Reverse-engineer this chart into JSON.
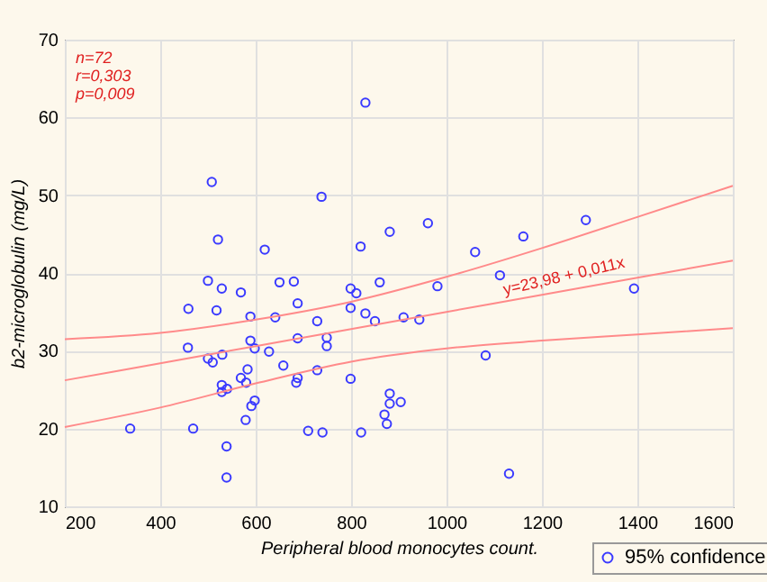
{
  "chart_data": {
    "type": "scatter",
    "xlabel": "Peripheral blood monocytes count.",
    "ylabel": "b2-microglobulin (mg/L)",
    "xlim": [
      200,
      1600
    ],
    "xticks": [
      200,
      400,
      600,
      800,
      1000,
      1200,
      1400,
      1600
    ],
    "ylim": [
      10,
      70
    ],
    "yticks": [
      10,
      20,
      30,
      40,
      50,
      60,
      70
    ],
    "grid": true,
    "legend": "bottom right",
    "annotations": [
      "n=72",
      "r=0,303",
      "p=0,009",
      {
        "text": "y=23,98 + 0,011x",
        "x": 1250,
        "y": 38.5
      }
    ],
    "series": [
      {
        "name": "95% confidence",
        "type": "scatter",
        "marker": "circle",
        "color": "#3a3aff",
        "x": [
          830,
          508,
          738,
          521,
          619,
          820,
          881,
          961,
          1060,
          1161,
          1292,
          1112,
          981,
          943,
          1393,
          1082,
          1131,
          500,
          529,
          569,
          650,
          680,
          799,
          811,
          860,
          459,
          518,
          589,
          641,
          688,
          799,
          830,
          850,
          729,
          910,
          458,
          500,
          510,
          530,
          589,
          598,
          628,
          688,
          749,
          749,
          658,
          729,
          583,
          569,
          580,
          688,
          685,
          799,
          529,
          529,
          540,
          598,
          591,
          579,
          881,
          881,
          904,
          870,
          875,
          337,
          469,
          710,
          740,
          821,
          539,
          539
        ],
        "values": [
          61.9,
          51.7,
          49.8,
          44.3,
          43.0,
          43.4,
          45.3,
          46.4,
          42.7,
          44.7,
          46.8,
          39.7,
          38.3,
          34.0,
          38.0,
          29.4,
          14.2,
          39.0,
          38.0,
          37.5,
          38.8,
          38.9,
          38.0,
          37.4,
          38.8,
          35.4,
          35.2,
          34.4,
          34.3,
          36.1,
          35.5,
          34.8,
          33.8,
          33.8,
          34.3,
          30.4,
          29.0,
          28.5,
          29.5,
          31.3,
          30.3,
          29.9,
          31.6,
          31.7,
          30.6,
          28.1,
          27.5,
          27.6,
          26.5,
          25.9,
          26.5,
          25.9,
          26.4,
          25.6,
          24.7,
          25.1,
          23.6,
          22.9,
          21.1,
          24.5,
          23.2,
          23.4,
          21.8,
          20.6,
          20.0,
          20.0,
          19.7,
          19.5,
          19.5,
          17.7,
          13.7
        ]
      },
      {
        "type": "line",
        "color": "#ff8a8a",
        "x": [
          200,
          400,
          600,
          800,
          1000,
          1200,
          1400,
          1600
        ],
        "values": [
          26.2,
          28.4,
          30.6,
          32.8,
          35.0,
          37.2,
          39.4,
          41.6
        ]
      },
      {
        "type": "line",
        "color": "#ff8a8a",
        "x": [
          200,
          400,
          600,
          800,
          1000,
          1200,
          1400,
          1600
        ],
        "values": [
          20.2,
          22.7,
          25.8,
          28.6,
          30.3,
          31.3,
          32.1,
          32.9
        ]
      },
      {
        "type": "line",
        "color": "#ff8a8a",
        "x": [
          200,
          400,
          600,
          800,
          1000,
          1200,
          1400,
          1600
        ],
        "values": [
          31.5,
          32.3,
          34.0,
          36.3,
          39.5,
          43.2,
          47.2,
          51.2
        ]
      }
    ]
  }
}
